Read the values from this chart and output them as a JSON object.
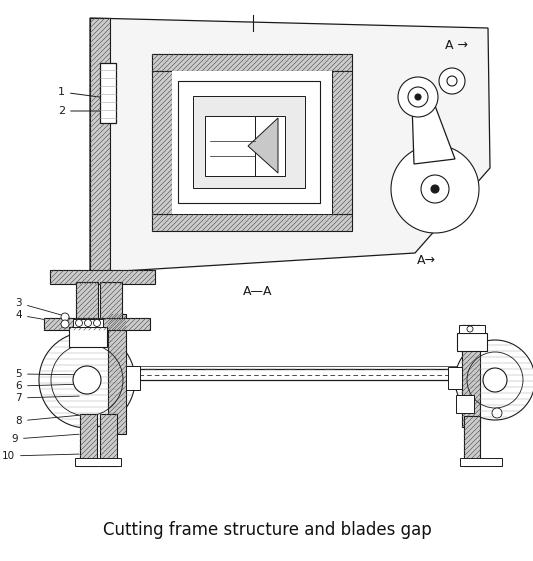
{
  "title": "Cutting frame structure and blades gap",
  "title_fontsize": 12,
  "bg_color": "#ffffff",
  "line_color": "#1a1a1a",
  "fig_width": 5.33,
  "fig_height": 5.61,
  "dpi": 100,
  "top_labels": [
    "1",
    "2"
  ],
  "bottom_labels": [
    "3",
    "4",
    "5",
    "6",
    "7",
    "8",
    "9",
    "10"
  ],
  "aa_label": "A—A",
  "arrow_label_top": "A →",
  "arrow_label_bot": "A→"
}
